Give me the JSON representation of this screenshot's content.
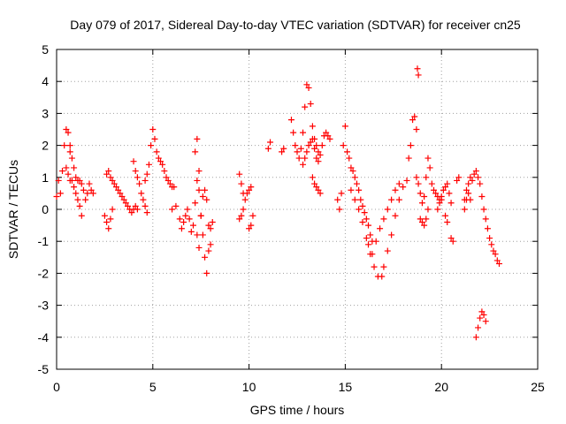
{
  "chart_data": {
    "type": "scatter",
    "title": "Day 079 of 2017, Sidereal Day-to-day VTEC variation (SDTVAR) for receiver cn25",
    "xlabel": "GPS time / hours",
    "ylabel": "SDTVAR / TECUs",
    "xlim": [
      0,
      25
    ],
    "ylim": [
      -5,
      5
    ],
    "xticks": [
      0,
      5,
      10,
      15,
      20,
      25
    ],
    "yticks": [
      -5,
      -4,
      -3,
      -2,
      -1,
      0,
      1,
      2,
      3,
      4,
      5
    ],
    "xtick_labels": [
      "0",
      "5",
      "10",
      "15",
      "20",
      "25"
    ],
    "ytick_labels": [
      "-5",
      "-4",
      "-3",
      "-2",
      "-1",
      "0",
      "1",
      "2",
      "3",
      "4",
      "5"
    ],
    "grid": true,
    "marker": "+",
    "color": "#ff0000",
    "series": [
      {
        "name": "cn25",
        "segments": [
          {
            "x": [
              0.0,
              0.1,
              0.2,
              0.3,
              0.4,
              0.5,
              0.6,
              0.7
            ],
            "y": [
              0.4,
              0.9,
              0.5,
              1.2,
              2.0,
              2.5,
              2.4,
              2.0
            ]
          },
          {
            "x": [
              0.7,
              0.8,
              0.9,
              1.0,
              1.1,
              1.2,
              1.3,
              1.4,
              1.5,
              1.6,
              1.7,
              1.8,
              1.9
            ],
            "y": [
              1.8,
              1.6,
              1.3,
              1.0,
              0.9,
              0.9,
              0.8,
              0.6,
              0.3,
              0.5,
              0.8,
              0.6,
              0.5
            ]
          },
          {
            "x": [
              0.5,
              0.6,
              0.7,
              0.8,
              0.9,
              1.0,
              1.1,
              1.2,
              1.3
            ],
            "y": [
              1.3,
              1.1,
              0.9,
              0.9,
              0.7,
              0.5,
              0.3,
              0.1,
              -0.2
            ]
          },
          {
            "x": [
              2.6,
              2.7,
              2.8,
              2.9,
              3.0,
              3.1,
              3.2,
              3.3,
              3.4,
              3.5,
              3.6,
              3.7,
              3.8,
              3.9,
              4.0,
              4.1,
              4.2
            ],
            "y": [
              1.1,
              1.2,
              1.0,
              0.9,
              0.8,
              0.7,
              0.6,
              0.5,
              0.4,
              0.3,
              0.2,
              0.1,
              0.0,
              -0.1,
              0.0,
              0.1,
              0.0
            ]
          },
          {
            "x": [
              2.5,
              2.6,
              2.7,
              2.8,
              2.9
            ],
            "y": [
              -0.2,
              -0.4,
              -0.6,
              -0.3,
              0.0
            ]
          },
          {
            "x": [
              4.0,
              4.1,
              4.2,
              4.3,
              4.4,
              4.5,
              4.6,
              4.7
            ],
            "y": [
              1.5,
              1.2,
              1.0,
              0.8,
              0.5,
              0.3,
              0.1,
              -0.1
            ]
          },
          {
            "x": [
              4.6,
              4.7,
              4.8,
              4.9,
              5.0,
              5.1,
              5.2,
              5.3,
              5.4,
              5.5,
              5.6,
              5.7,
              5.8,
              5.9,
              6.0,
              6.1
            ],
            "y": [
              0.9,
              1.1,
              1.4,
              2.0,
              2.5,
              2.2,
              1.8,
              1.6,
              1.5,
              1.4,
              1.2,
              1.0,
              0.9,
              0.8,
              0.7,
              0.7
            ]
          },
          {
            "x": [
              6.0,
              6.2,
              6.4,
              6.5,
              6.6,
              6.7,
              6.8,
              6.9,
              7.0,
              7.1,
              7.2,
              7.3,
              7.4
            ],
            "y": [
              0.0,
              0.1,
              -0.3,
              -0.6,
              -0.4,
              -0.2,
              0.0,
              -0.3,
              -0.7,
              -0.5,
              0.2,
              0.9,
              1.2
            ]
          },
          {
            "x": [
              7.2,
              7.3,
              7.4,
              7.5,
              7.6,
              7.7,
              7.8,
              7.9,
              8.0,
              8.1
            ],
            "y": [
              1.8,
              2.2,
              0.6,
              -0.2,
              -0.8,
              -1.5,
              -2.0,
              -1.3,
              -0.6,
              -0.4
            ]
          },
          {
            "x": [
              7.3,
              7.4,
              7.5,
              7.6,
              7.7,
              7.8,
              7.9,
              8.0
            ],
            "y": [
              -0.8,
              -1.2,
              -0.2,
              0.4,
              0.6,
              0.3,
              -0.5,
              -1.1
            ]
          },
          {
            "x": [
              9.5,
              9.6,
              9.7,
              9.8,
              9.9,
              10.0,
              10.1
            ],
            "y": [
              1.1,
              0.8,
              0.5,
              0.3,
              0.5,
              0.6,
              0.7
            ]
          },
          {
            "x": [
              9.5,
              9.6,
              9.7
            ],
            "y": [
              -0.3,
              -0.2,
              0.0
            ]
          },
          {
            "x": [
              10.0,
              10.1,
              10.2
            ],
            "y": [
              -0.6,
              -0.5,
              -0.2
            ]
          },
          {
            "x": [
              11.0,
              11.1
            ],
            "y": [
              1.9,
              2.1
            ]
          },
          {
            "x": [
              11.7,
              11.8
            ],
            "y": [
              1.8,
              1.9
            ]
          },
          {
            "x": [
              12.2,
              12.3,
              12.4,
              12.5,
              12.6,
              12.7,
              12.8,
              12.9,
              13.0,
              13.1,
              13.2,
              13.3,
              13.4,
              13.5,
              13.6
            ],
            "y": [
              2.8,
              2.4,
              2.0,
              1.8,
              1.6,
              1.9,
              2.4,
              3.2,
              3.9,
              3.8,
              3.3,
              2.6,
              2.2,
              2.0,
              1.8
            ]
          },
          {
            "x": [
              12.8,
              12.9,
              13.0,
              13.1,
              13.2,
              13.3,
              13.4,
              13.5,
              13.6,
              13.7,
              13.8,
              13.9,
              14.0,
              14.1,
              14.2
            ],
            "y": [
              1.4,
              1.6,
              1.8,
              2.0,
              2.1,
              2.2,
              1.9,
              1.6,
              1.5,
              1.7,
              2.0,
              2.3,
              2.4,
              2.3,
              2.2
            ]
          },
          {
            "x": [
              13.3,
              13.4,
              13.5,
              13.6,
              13.7
            ],
            "y": [
              1.0,
              0.8,
              0.7,
              0.6,
              0.5
            ]
          },
          {
            "x": [
              14.6,
              14.7,
              14.8,
              14.9,
              15.0,
              15.1,
              15.2,
              15.3,
              15.4,
              15.5,
              15.6,
              15.7,
              15.8,
              15.9,
              16.0,
              16.1,
              16.2,
              16.3,
              16.4
            ],
            "y": [
              0.3,
              0.0,
              0.5,
              2.0,
              2.6,
              1.8,
              1.6,
              1.3,
              1.2,
              1.0,
              0.8,
              0.6,
              0.3,
              0.1,
              -0.1,
              -0.3,
              -0.5,
              -0.8,
              -1.0
            ]
          },
          {
            "x": [
              15.3,
              15.5,
              15.7,
              15.9,
              16.1,
              16.3,
              16.5,
              16.7,
              16.9,
              17.0,
              17.2,
              17.4,
              17.6,
              17.8,
              18.0
            ],
            "y": [
              0.6,
              0.3,
              0.0,
              -0.4,
              -0.9,
              -1.4,
              -1.8,
              -2.1,
              -2.1,
              -1.8,
              -1.3,
              -0.8,
              -0.2,
              0.3,
              0.7
            ]
          },
          {
            "x": [
              16.2,
              16.4,
              16.6,
              16.8,
              17.0,
              17.2,
              17.4,
              17.6,
              17.8
            ],
            "y": [
              -1.1,
              -1.4,
              -1.0,
              -0.6,
              -0.3,
              0.0,
              0.3,
              0.6,
              0.8
            ]
          },
          {
            "x": [
              18.2,
              18.3,
              18.4,
              18.5,
              18.6,
              18.7
            ],
            "y": [
              0.9,
              1.6,
              2.0,
              2.8,
              2.9,
              2.5
            ]
          },
          {
            "x": [
              18.7,
              18.8,
              18.9,
              19.0,
              19.1,
              19.2,
              19.3,
              19.4,
              19.5,
              19.6,
              19.7,
              19.8,
              19.9,
              20.0
            ],
            "y": [
              1.0,
              0.8,
              0.5,
              0.2,
              0.4,
              1.0,
              1.6,
              1.3,
              0.8,
              0.6,
              0.5,
              0.4,
              0.3,
              0.3
            ]
          },
          {
            "x": [
              18.9,
              19.0,
              19.1,
              19.2,
              19.3
            ],
            "y": [
              -0.3,
              -0.4,
              -0.5,
              -0.3,
              0.0
            ]
          },
          {
            "x": [
              18.75,
              18.8
            ],
            "y": [
              4.4,
              4.2
            ]
          },
          {
            "x": [
              19.8,
              19.9,
              20.0,
              20.1,
              20.2,
              20.3,
              20.4,
              20.5
            ],
            "y": [
              0.0,
              0.2,
              0.4,
              0.6,
              0.7,
              0.8,
              0.5,
              0.2
            ]
          },
          {
            "x": [
              20.2,
              20.3
            ],
            "y": [
              -0.2,
              -0.4
            ]
          },
          {
            "x": [
              20.5,
              20.6
            ],
            "y": [
              -0.9,
              -1.0
            ]
          },
          {
            "x": [
              20.8,
              20.9
            ],
            "y": [
              0.9,
              1.0
            ]
          },
          {
            "x": [
              21.2,
              21.3,
              21.4,
              21.5,
              21.6,
              21.7,
              21.8,
              21.9,
              22.0,
              22.1,
              22.2,
              22.3,
              22.4,
              22.5,
              22.6,
              22.7,
              22.8,
              22.9,
              23.0
            ],
            "y": [
              0.3,
              0.6,
              0.8,
              1.0,
              0.9,
              1.1,
              1.2,
              1.0,
              0.8,
              0.4,
              0.0,
              -0.3,
              -0.6,
              -0.9,
              -1.1,
              -1.3,
              -1.4,
              -1.6,
              -1.7
            ]
          },
          {
            "x": [
              21.2,
              21.3,
              21.4,
              21.5
            ],
            "y": [
              0.0,
              0.3,
              0.5,
              0.3
            ]
          },
          {
            "x": [
              21.8,
              21.9,
              22.0,
              22.1,
              22.2,
              22.3
            ],
            "y": [
              -4.0,
              -3.7,
              -3.4,
              -3.2,
              -3.3,
              -3.5
            ]
          }
        ]
      }
    ]
  }
}
